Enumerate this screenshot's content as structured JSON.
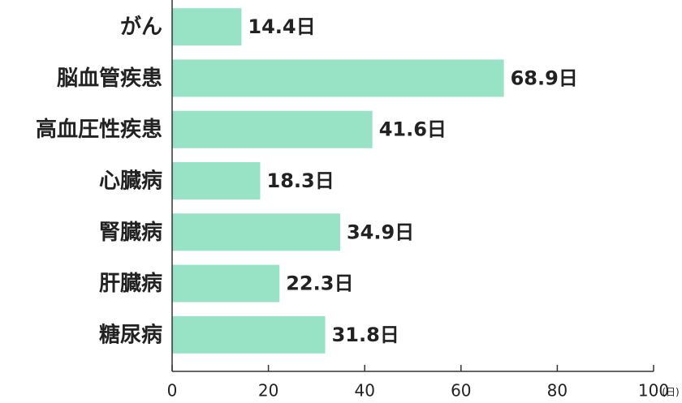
{
  "chart_data": {
    "type": "barh",
    "categories": [
      "がん",
      "脳血管疾患",
      "高血圧性疾患",
      "心臓病",
      "腎臓病",
      "肝臓病",
      "糖尿病"
    ],
    "values": [
      14.4,
      68.9,
      41.6,
      18.3,
      34.9,
      22.3,
      31.8
    ],
    "value_labels": [
      "14.4日",
      "68.9日",
      "41.6日",
      "18.3日",
      "34.9日",
      "22.3日",
      "31.8日"
    ],
    "color": "#98e2c6",
    "x_unit": "(日)",
    "xlim": [
      0,
      100
    ],
    "xticks": [
      0,
      20,
      40,
      60,
      80,
      100
    ]
  }
}
